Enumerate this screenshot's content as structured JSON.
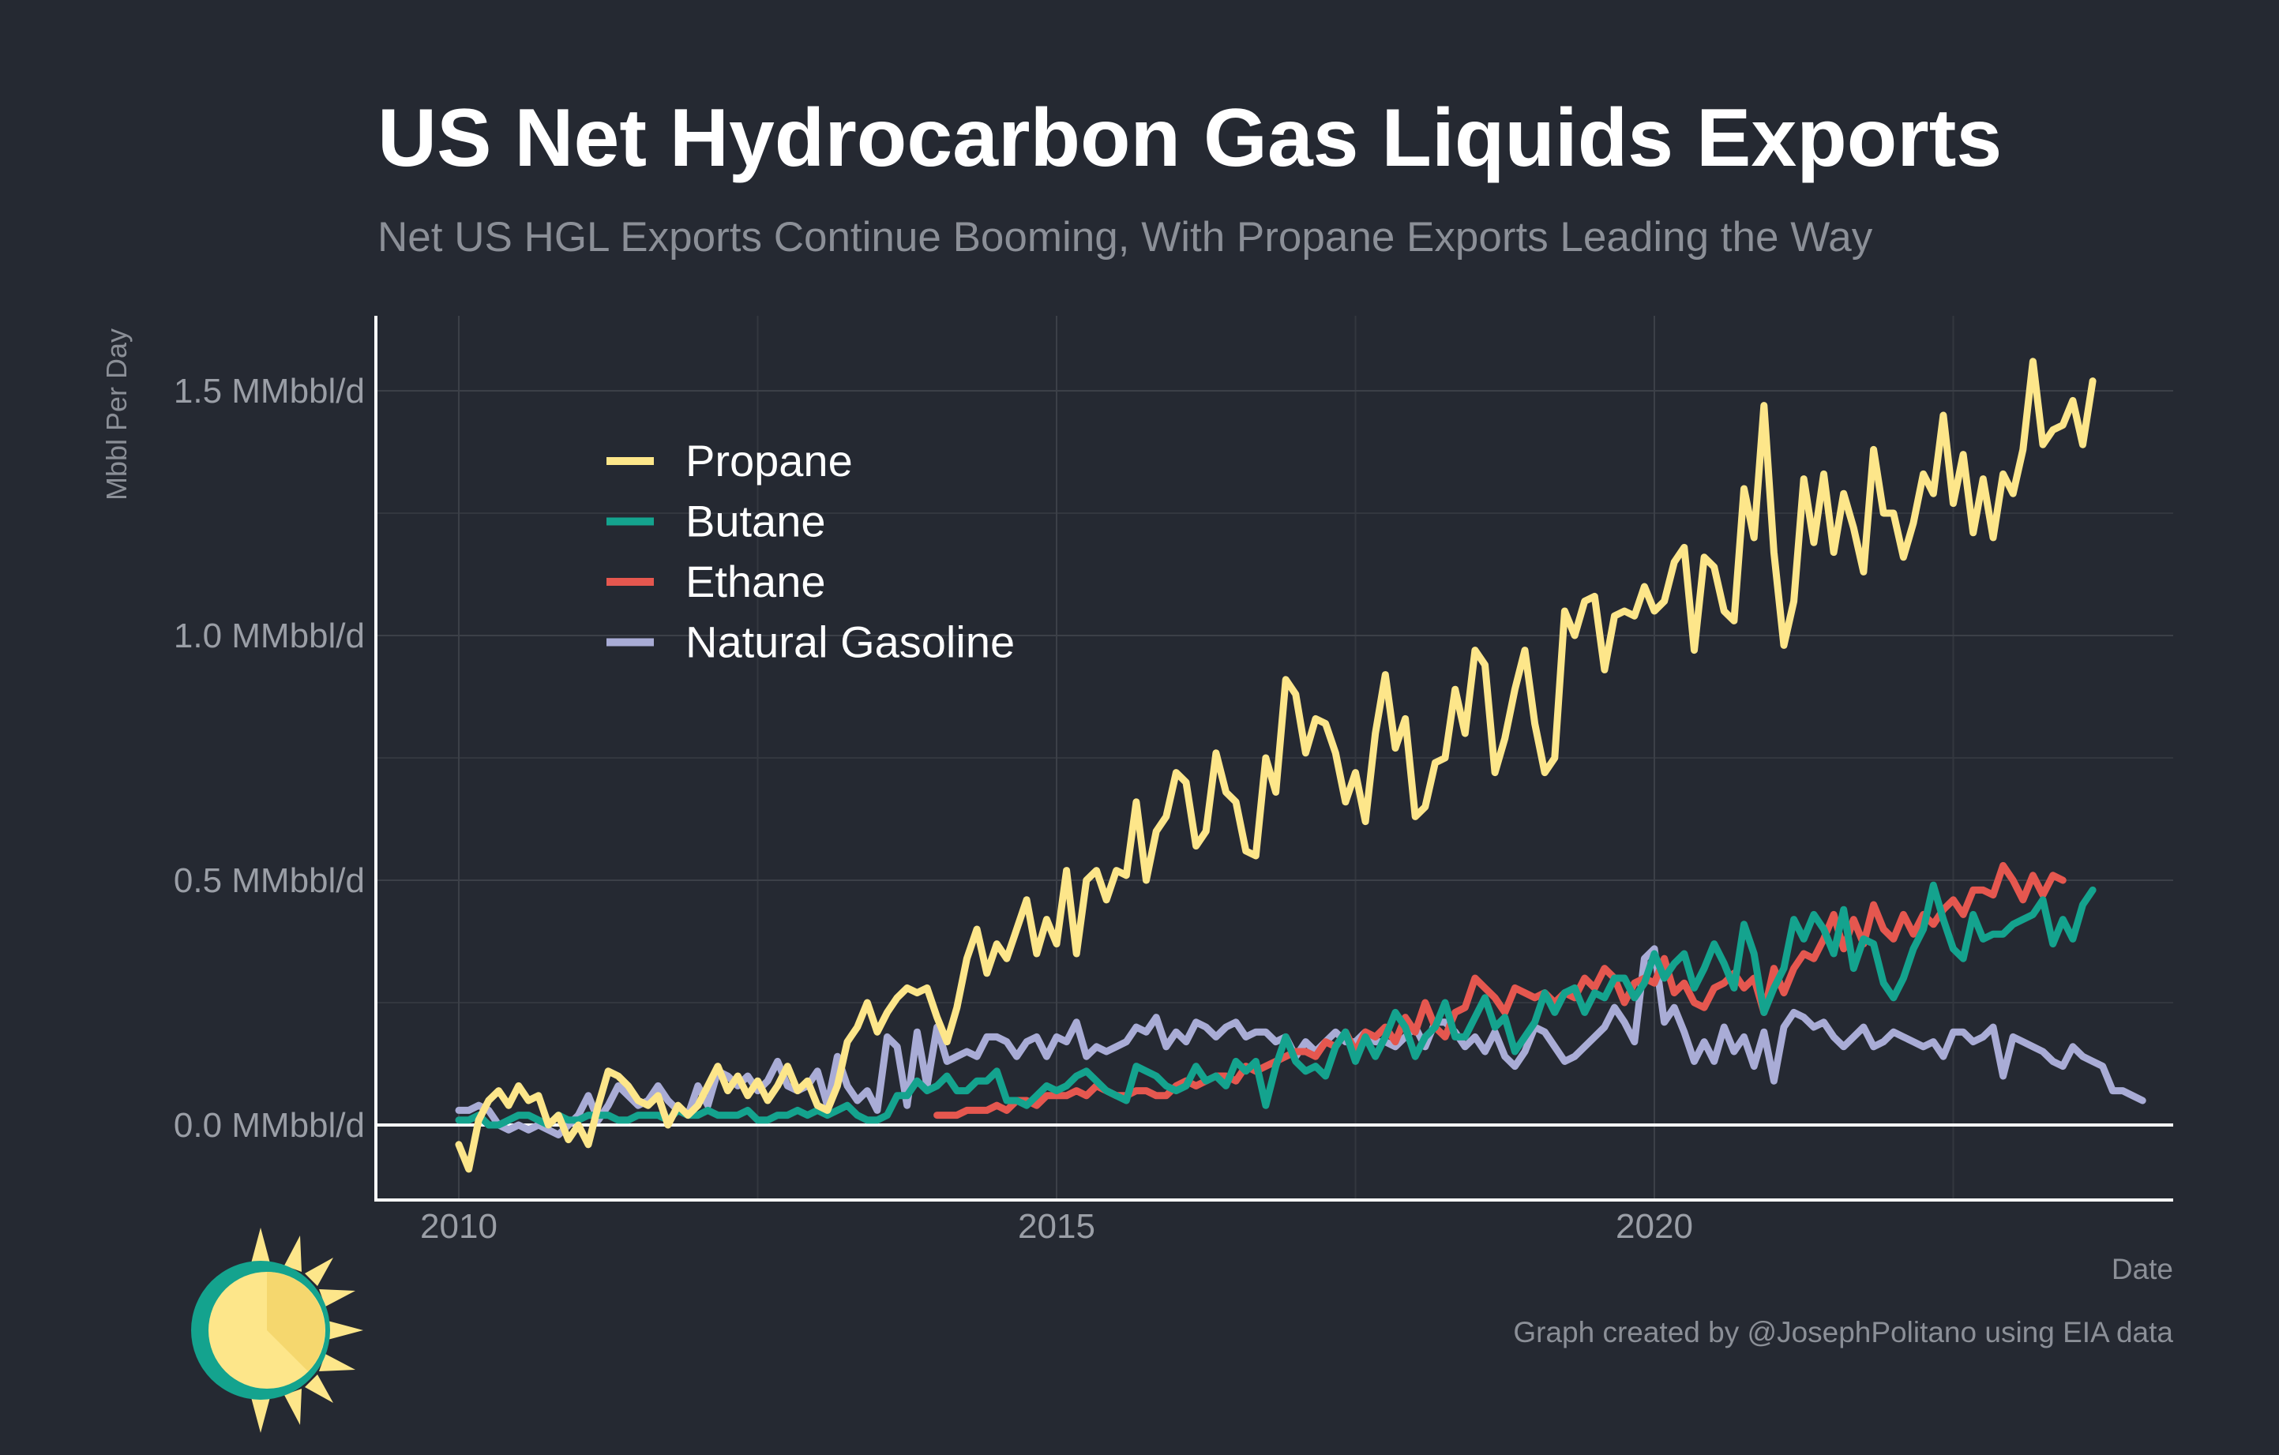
{
  "chart_data": {
    "type": "line",
    "title": "US Net Hydrocarbon Gas Liquids Exports",
    "subtitle": "Net US HGL Exports Continue Booming, With Propane Exports Leading the Way",
    "xlabel": "Date",
    "ylabel": "Mbbl Per Day",
    "caption": "Graph created by @JosephPolitano using EIA data",
    "xlim": [
      2010.0,
      2025.0
    ],
    "ylim": [
      -0.15,
      1.65
    ],
    "x_ticks": [
      2010,
      2015,
      2020
    ],
    "x_tick_labels": [
      "2010",
      "2015",
      "2020"
    ],
    "y_ticks": [
      0.0,
      0.5,
      1.0,
      1.5
    ],
    "y_tick_labels": [
      "0.0 MMbbl/d",
      "0.5 MMbbl/d",
      "1.0 MMbbl/d",
      "1.5 MMbbl/d"
    ],
    "grid": true,
    "legend_position": "top-left",
    "series": [
      {
        "name": "Propane",
        "color": "#fde68a",
        "x_start": 2010.0,
        "x_step": 0.0833333,
        "values": [
          -0.04,
          -0.09,
          0.01,
          0.05,
          0.07,
          0.04,
          0.08,
          0.05,
          0.06,
          0.0,
          0.02,
          -0.03,
          0.0,
          -0.04,
          0.04,
          0.11,
          0.1,
          0.08,
          0.05,
          0.04,
          0.06,
          0.0,
          0.04,
          0.02,
          0.04,
          0.08,
          0.12,
          0.07,
          0.1,
          0.06,
          0.09,
          0.05,
          0.08,
          0.12,
          0.07,
          0.09,
          0.04,
          0.03,
          0.08,
          0.17,
          0.2,
          0.25,
          0.19,
          0.23,
          0.26,
          0.28,
          0.27,
          0.28,
          0.22,
          0.17,
          0.24,
          0.34,
          0.4,
          0.31,
          0.37,
          0.34,
          0.4,
          0.46,
          0.35,
          0.42,
          0.37,
          0.52,
          0.35,
          0.5,
          0.52,
          0.46,
          0.52,
          0.51,
          0.66,
          0.5,
          0.6,
          0.63,
          0.72,
          0.7,
          0.57,
          0.6,
          0.76,
          0.68,
          0.66,
          0.56,
          0.55,
          0.75,
          0.68,
          0.91,
          0.88,
          0.76,
          0.83,
          0.82,
          0.76,
          0.66,
          0.72,
          0.62,
          0.8,
          0.92,
          0.77,
          0.83,
          0.63,
          0.65,
          0.74,
          0.75,
          0.89,
          0.8,
          0.97,
          0.94,
          0.72,
          0.79,
          0.89,
          0.97,
          0.82,
          0.72,
          0.75,
          1.05,
          1.0,
          1.07,
          1.08,
          0.93,
          1.04,
          1.05,
          1.04,
          1.1,
          1.05,
          1.07,
          1.15,
          1.18,
          0.97,
          1.16,
          1.14,
          1.05,
          1.03,
          1.3,
          1.2,
          1.47,
          1.17,
          0.98,
          1.07,
          1.32,
          1.19,
          1.33,
          1.17,
          1.29,
          1.22,
          1.13,
          1.38,
          1.25,
          1.25,
          1.16,
          1.23,
          1.33,
          1.29,
          1.45,
          1.27,
          1.37,
          1.21,
          1.32,
          1.2,
          1.33,
          1.29,
          1.38,
          1.56,
          1.39,
          1.42,
          1.43,
          1.48,
          1.39,
          1.52
        ]
      },
      {
        "name": "Butane",
        "color": "#14a38e",
        "x_start": 2010.0,
        "x_step": 0.0833333,
        "values": [
          0.01,
          0.01,
          0.02,
          0.0,
          0.0,
          0.01,
          0.02,
          0.02,
          0.01,
          0.0,
          0.02,
          0.01,
          0.01,
          0.02,
          0.02,
          0.02,
          0.01,
          0.01,
          0.02,
          0.02,
          0.02,
          0.01,
          0.03,
          0.02,
          0.02,
          0.03,
          0.02,
          0.02,
          0.02,
          0.03,
          0.01,
          0.01,
          0.02,
          0.02,
          0.03,
          0.02,
          0.03,
          0.02,
          0.03,
          0.04,
          0.02,
          0.01,
          0.01,
          0.02,
          0.06,
          0.06,
          0.09,
          0.07,
          0.08,
          0.1,
          0.07,
          0.07,
          0.09,
          0.09,
          0.11,
          0.05,
          0.05,
          0.04,
          0.06,
          0.08,
          0.07,
          0.08,
          0.1,
          0.11,
          0.09,
          0.07,
          0.06,
          0.05,
          0.12,
          0.11,
          0.1,
          0.08,
          0.07,
          0.08,
          0.12,
          0.09,
          0.1,
          0.08,
          0.13,
          0.11,
          0.13,
          0.04,
          0.12,
          0.18,
          0.13,
          0.11,
          0.12,
          0.1,
          0.16,
          0.19,
          0.13,
          0.18,
          0.14,
          0.18,
          0.23,
          0.2,
          0.14,
          0.18,
          0.2,
          0.25,
          0.18,
          0.18,
          0.22,
          0.26,
          0.2,
          0.22,
          0.15,
          0.18,
          0.21,
          0.27,
          0.23,
          0.27,
          0.28,
          0.23,
          0.27,
          0.26,
          0.3,
          0.3,
          0.26,
          0.29,
          0.35,
          0.3,
          0.33,
          0.35,
          0.28,
          0.32,
          0.37,
          0.33,
          0.28,
          0.41,
          0.35,
          0.23,
          0.28,
          0.32,
          0.42,
          0.38,
          0.43,
          0.4,
          0.35,
          0.44,
          0.32,
          0.38,
          0.37,
          0.29,
          0.26,
          0.3,
          0.36,
          0.4,
          0.49,
          0.42,
          0.36,
          0.34,
          0.43,
          0.38,
          0.39,
          0.39,
          0.41,
          0.42,
          0.43,
          0.46,
          0.37,
          0.42,
          0.38,
          0.45,
          0.48
        ]
      },
      {
        "name": "Ethane",
        "color": "#e5574f",
        "x_start": 2014.0,
        "x_step": 0.0833333,
        "values": [
          0.02,
          0.02,
          0.02,
          0.03,
          0.03,
          0.03,
          0.04,
          0.03,
          0.05,
          0.05,
          0.04,
          0.06,
          0.06,
          0.06,
          0.07,
          0.06,
          0.08,
          0.07,
          0.06,
          0.06,
          0.07,
          0.07,
          0.06,
          0.06,
          0.08,
          0.09,
          0.08,
          0.09,
          0.1,
          0.1,
          0.09,
          0.12,
          0.11,
          0.12,
          0.13,
          0.14,
          0.15,
          0.15,
          0.14,
          0.17,
          0.16,
          0.19,
          0.15,
          0.19,
          0.18,
          0.2,
          0.17,
          0.22,
          0.19,
          0.25,
          0.2,
          0.18,
          0.23,
          0.24,
          0.3,
          0.28,
          0.26,
          0.23,
          0.28,
          0.27,
          0.26,
          0.27,
          0.25,
          0.27,
          0.26,
          0.3,
          0.28,
          0.32,
          0.3,
          0.25,
          0.29,
          0.3,
          0.29,
          0.34,
          0.27,
          0.29,
          0.25,
          0.24,
          0.28,
          0.29,
          0.31,
          0.28,
          0.3,
          0.23,
          0.32,
          0.27,
          0.32,
          0.35,
          0.34,
          0.38,
          0.43,
          0.36,
          0.42,
          0.37,
          0.45,
          0.4,
          0.38,
          0.43,
          0.39,
          0.43,
          0.41,
          0.44,
          0.46,
          0.43,
          0.48,
          0.48,
          0.47,
          0.53,
          0.5,
          0.46,
          0.51,
          0.47,
          0.51,
          0.5
        ]
      },
      {
        "name": "Natural Gasoline",
        "color": "#a9acd6",
        "x_start": 2010.0,
        "x_step": 0.0833333,
        "values": [
          0.03,
          0.03,
          0.04,
          0.03,
          0.0,
          -0.01,
          0.0,
          -0.01,
          0.0,
          -0.01,
          -0.02,
          0.0,
          0.02,
          0.06,
          0.01,
          0.04,
          0.08,
          0.06,
          0.04,
          0.05,
          0.08,
          0.05,
          0.03,
          0.02,
          0.08,
          0.04,
          0.11,
          0.1,
          0.08,
          0.1,
          0.07,
          0.09,
          0.13,
          0.08,
          0.07,
          0.08,
          0.11,
          0.04,
          0.14,
          0.08,
          0.05,
          0.07,
          0.03,
          0.18,
          0.16,
          0.04,
          0.19,
          0.08,
          0.2,
          0.13,
          0.14,
          0.15,
          0.14,
          0.18,
          0.18,
          0.17,
          0.14,
          0.17,
          0.18,
          0.14,
          0.18,
          0.17,
          0.21,
          0.14,
          0.16,
          0.15,
          0.16,
          0.17,
          0.2,
          0.19,
          0.22,
          0.16,
          0.19,
          0.17,
          0.21,
          0.2,
          0.18,
          0.2,
          0.21,
          0.18,
          0.19,
          0.19,
          0.17,
          0.18,
          0.14,
          0.17,
          0.15,
          0.17,
          0.19,
          0.17,
          0.17,
          0.19,
          0.17,
          0.17,
          0.16,
          0.18,
          0.2,
          0.16,
          0.21,
          0.21,
          0.19,
          0.16,
          0.18,
          0.15,
          0.19,
          0.14,
          0.12,
          0.15,
          0.2,
          0.19,
          0.16,
          0.13,
          0.14,
          0.16,
          0.18,
          0.2,
          0.24,
          0.21,
          0.17,
          0.34,
          0.36,
          0.21,
          0.24,
          0.19,
          0.13,
          0.17,
          0.13,
          0.2,
          0.15,
          0.18,
          0.12,
          0.19,
          0.09,
          0.2,
          0.23,
          0.22,
          0.2,
          0.21,
          0.18,
          0.16,
          0.18,
          0.2,
          0.16,
          0.17,
          0.19,
          0.18,
          0.17,
          0.16,
          0.17,
          0.14,
          0.19,
          0.19,
          0.17,
          0.18,
          0.2,
          0.1,
          0.18,
          0.17,
          0.16,
          0.15,
          0.13,
          0.12,
          0.16,
          0.14,
          0.13,
          0.12,
          0.07,
          0.07,
          0.06,
          0.05
        ]
      }
    ]
  }
}
